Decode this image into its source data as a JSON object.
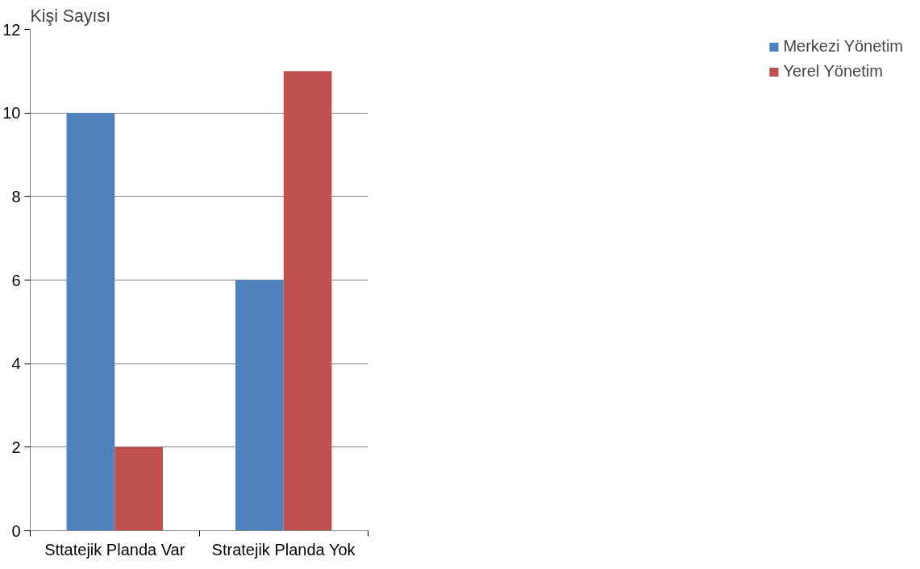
{
  "chart_data": {
    "type": "bar",
    "ylabel": "Kişi Sayısı",
    "categories": [
      "Sttatejik Planda Var",
      "Stratejik Planda Yok"
    ],
    "series": [
      {
        "name": "Merkezi Yönetim",
        "color": "#4f81bd",
        "values": [
          10,
          6
        ]
      },
      {
        "name": "Yerel Yönetim",
        "color": "#c0504d",
        "values": [
          2,
          11
        ]
      }
    ],
    "ylim": [
      0,
      12
    ],
    "yticks": [
      0,
      2,
      4,
      6,
      8,
      10,
      12
    ],
    "grid": "y",
    "legend": "right"
  }
}
